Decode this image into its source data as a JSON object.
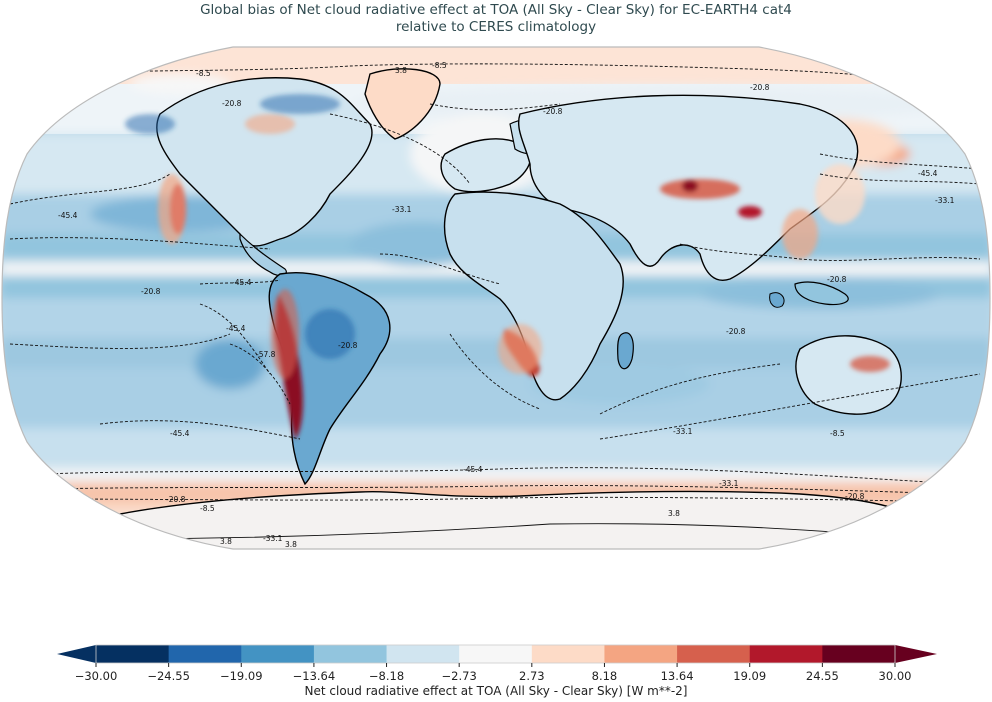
{
  "title": {
    "line1": "Global bias of Net cloud radiative effect at TOA (All Sky - Clear Sky) for EC-EARTH4 cat4",
    "line2": "relative to CERES climatology"
  },
  "colorbar": {
    "label": "Net cloud radiative effect at TOA (All Sky - Clear Sky) [W m**-2]",
    "ticks": [
      "−30.00",
      "−24.55",
      "−19.09",
      "−13.64",
      "−8.18",
      "−2.73",
      "2.73",
      "8.18",
      "13.64",
      "19.09",
      "24.55",
      "30.00"
    ],
    "colors": [
      "#053061",
      "#2166ac",
      "#4393c3",
      "#92c5de",
      "#d1e5f0",
      "#f7f7f7",
      "#fddbc7",
      "#f4a582",
      "#d6604d",
      "#b2182b",
      "#67001f"
    ],
    "under_color": "#053061",
    "over_color": "#67001f"
  },
  "chart_data": {
    "type": "heatmap",
    "title": "Global bias of Net cloud radiative effect at TOA (All Sky - Clear Sky) for EC-EARTH4 cat4 relative to CERES climatology",
    "projection": "Robinson",
    "colorbar_label": "Net cloud radiative effect at TOA (All Sky - Clear Sky) [W m**-2]",
    "levels": [
      -30.0,
      -24.55,
      -19.09,
      -13.64,
      -8.18,
      -2.73,
      2.73,
      8.18,
      13.64,
      19.09,
      24.55,
      30.0
    ],
    "extend": "both",
    "colormap": "RdBu_r",
    "contour_levels_climatology": [
      -57.8,
      -45.4,
      -33.1,
      -20.8,
      -8.5,
      3.8
    ],
    "contour_labels_visible": [
      {
        "value": "-8.5",
        "region": "North Pacific / Alaska"
      },
      {
        "value": "-20.8",
        "region": "Canada"
      },
      {
        "value": "-45.4",
        "region": "North Pacific"
      },
      {
        "value": "-33.1",
        "region": "US West coast"
      },
      {
        "value": "-33.1",
        "region": "North Atlantic"
      },
      {
        "value": "-20.8",
        "region": "Eastern North Atlantic"
      },
      {
        "value": "3.8",
        "region": "Greenland"
      },
      {
        "value": "-8.5",
        "region": "Arctic"
      },
      {
        "value": "-20.8",
        "region": "Siberia"
      },
      {
        "value": "-45.4",
        "region": "Northwest Pacific"
      },
      {
        "value": "-33.1",
        "region": "Northwest Pacific"
      },
      {
        "value": "-20.8",
        "region": "Western tropical Pacific"
      },
      {
        "value": "-20.8",
        "region": "Eastern tropical Pacific"
      },
      {
        "value": "-45.4",
        "region": "Eastern tropical Pacific"
      },
      {
        "value": "-57.8",
        "region": "Southeast Pacific"
      },
      {
        "value": "-20.8",
        "region": "Amazon"
      },
      {
        "value": "-45.4",
        "region": "South Atlantic"
      },
      {
        "value": "-20.8",
        "region": "Indian Ocean"
      },
      {
        "value": "-33.1",
        "region": "South Indian Ocean"
      },
      {
        "value": "-8.5",
        "region": "Australia"
      },
      {
        "value": "-45.4",
        "region": "South Pacific"
      },
      {
        "value": "-45.4",
        "region": "Southern Ocean"
      },
      {
        "value": "-33.1",
        "region": "Southern Ocean"
      },
      {
        "value": "-20.8",
        "region": "Southern Ocean"
      },
      {
        "value": "-8.5",
        "region": "Antarctic coast"
      },
      {
        "value": "3.8",
        "region": "Antarctica"
      }
    ],
    "notable_features": [
      {
        "region": "Peru/Chile stratocumulus coast",
        "bias": "strong positive (>24.55)"
      },
      {
        "region": "Namibia/Angola stratocumulus coast",
        "bias": "strong positive (>19.09)"
      },
      {
        "region": "California stratocumulus coast",
        "bias": "strong positive (>19.09)"
      },
      {
        "region": "Tibetan Plateau / China",
        "bias": "positive (8–30)"
      },
      {
        "region": "Southern Ocean ~60S",
        "bias": "positive (2.73–13.64)"
      },
      {
        "region": "Tropical and subtropical oceans",
        "bias": "negative (-8 to -19)"
      },
      {
        "region": "Amazon / South America",
        "bias": "negative (-13 to -25)"
      }
    ]
  }
}
